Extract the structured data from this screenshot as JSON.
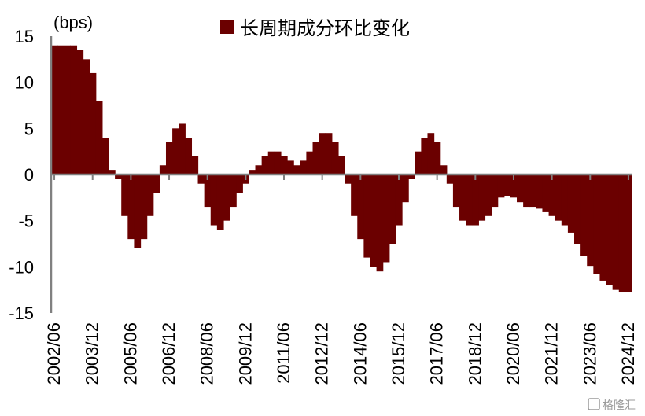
{
  "chart_data": {
    "type": "area",
    "title": "",
    "unit_label": "(bps)",
    "xlabel": "",
    "ylabel": "",
    "ylim": [
      -15,
      15
    ],
    "yticks": [
      15,
      10,
      5,
      0,
      -5,
      -10,
      -15
    ],
    "x_tick_labels": [
      "2002/06",
      "2003/12",
      "2005/06",
      "2006/12",
      "2008/06",
      "2009/12",
      "2011/06",
      "2012/12",
      "2014/06",
      "2015/12",
      "2017/06",
      "2018/12",
      "2020/06",
      "2021/12",
      "2023/06",
      "2024/12"
    ],
    "legend": {
      "position": "top-center",
      "entries": [
        {
          "name": "长周期成分环比变化",
          "color": "#6b0000"
        }
      ]
    },
    "grid": false,
    "series": [
      {
        "name": "长周期成分环比变化",
        "color": "#6b0000",
        "x": [
          "2002/06",
          "2002/09",
          "2002/12",
          "2003/03",
          "2003/06",
          "2003/09",
          "2003/12",
          "2004/03",
          "2004/06",
          "2004/09",
          "2004/12",
          "2005/03",
          "2005/06",
          "2005/09",
          "2005/12",
          "2006/03",
          "2006/06",
          "2006/09",
          "2006/12",
          "2007/03",
          "2007/06",
          "2007/09",
          "2007/12",
          "2008/03",
          "2008/06",
          "2008/09",
          "2008/12",
          "2009/03",
          "2009/06",
          "2009/09",
          "2009/12",
          "2010/03",
          "2010/06",
          "2010/09",
          "2010/12",
          "2011/03",
          "2011/06",
          "2011/09",
          "2011/12",
          "2012/03",
          "2012/06",
          "2012/09",
          "2012/12",
          "2013/03",
          "2013/06",
          "2013/09",
          "2013/12",
          "2014/03",
          "2014/06",
          "2014/09",
          "2014/12",
          "2015/03",
          "2015/06",
          "2015/09",
          "2015/12",
          "2016/03",
          "2016/06",
          "2016/09",
          "2016/12",
          "2017/03",
          "2017/06",
          "2017/09",
          "2017/12",
          "2018/03",
          "2018/06",
          "2018/09",
          "2018/12",
          "2019/03",
          "2019/06",
          "2019/09",
          "2019/12",
          "2020/03",
          "2020/06",
          "2020/09",
          "2020/12",
          "2021/03",
          "2021/06",
          "2021/09",
          "2021/12",
          "2022/03",
          "2022/06",
          "2022/09",
          "2022/12",
          "2023/03",
          "2023/06",
          "2023/09",
          "2023/12",
          "2024/03",
          "2024/06",
          "2024/09",
          "2024/12"
        ],
        "values": [
          14.0,
          14.0,
          14.0,
          14.0,
          13.5,
          12.5,
          11.0,
          8.0,
          4.0,
          0.5,
          -0.5,
          -4.5,
          -7.0,
          -8.0,
          -7.0,
          -4.5,
          -2.0,
          1.0,
          3.5,
          5.0,
          5.5,
          4.0,
          2.0,
          -1.0,
          -3.5,
          -5.5,
          -6.0,
          -5.0,
          -3.5,
          -2.0,
          -1.0,
          0.5,
          1.0,
          2.0,
          2.5,
          2.5,
          2.0,
          1.5,
          1.0,
          1.5,
          2.5,
          3.5,
          4.5,
          4.5,
          3.5,
          2.0,
          -1.0,
          -4.5,
          -7.0,
          -9.0,
          -10.0,
          -10.5,
          -9.5,
          -7.5,
          -5.5,
          -3.0,
          -0.5,
          2.5,
          4.0,
          4.5,
          3.5,
          1.0,
          -1.0,
          -3.5,
          -5.0,
          -5.5,
          -5.5,
          -5.0,
          -4.5,
          -3.5,
          -2.5,
          -2.3,
          -2.5,
          -3.0,
          -3.5,
          -3.5,
          -3.7,
          -4.0,
          -4.5,
          -5.0,
          -5.5,
          -6.3,
          -7.5,
          -8.8,
          -9.9,
          -10.8,
          -11.5,
          -12.0,
          -12.5,
          -12.7,
          -12.7
        ]
      }
    ]
  },
  "watermark_text": "格隆汇"
}
